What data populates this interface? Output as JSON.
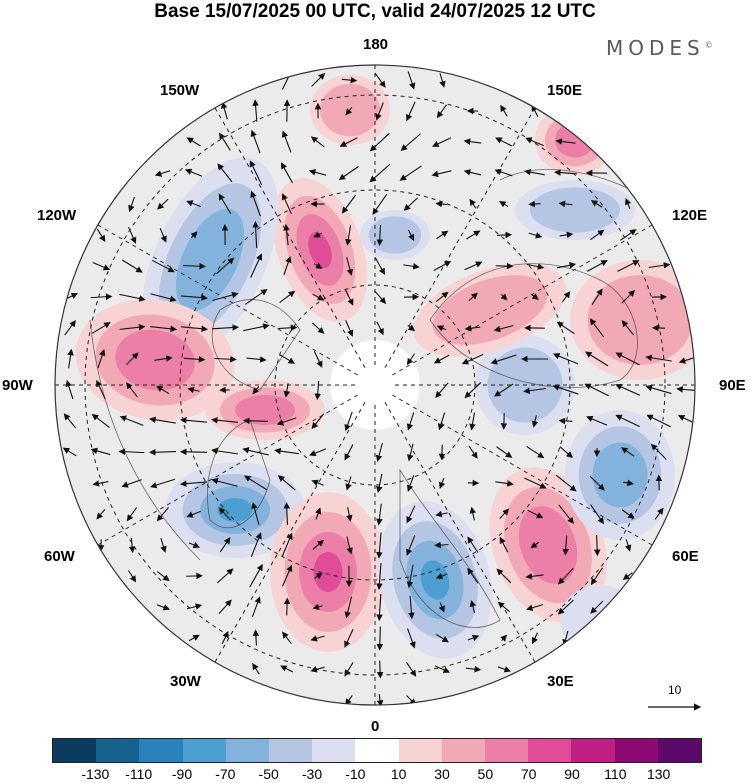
{
  "header": {
    "title": "Base 15/07/2025 00 UTC, valid 24/07/2025 12 UTC",
    "brand": "MODES",
    "brand_mark": "©"
  },
  "map": {
    "projection": "north polar stereographic",
    "longitude_labels": {
      "top": "180",
      "top_left": "150W",
      "top_right": "150E",
      "upper_left": "120W",
      "upper_right": "120E",
      "left": "90W",
      "right": "90E",
      "lower_left": "60W",
      "lower_right": "60E",
      "bottom_left": "30W",
      "bottom_right": "30E",
      "bottom": "0"
    },
    "vector_reference": "10"
  },
  "legend": {
    "colors": [
      "#0b3b5e",
      "#17618f",
      "#2a82bc",
      "#4d9fd2",
      "#83b3dc",
      "#b4c6e3",
      "#dcdff0",
      "#ffffff",
      "#f7d3d4",
      "#f2a9b6",
      "#ec7fa8",
      "#e04c98",
      "#c01f84",
      "#8c0a72",
      "#5b0a6c"
    ],
    "tick_labels": [
      "-130",
      "-110",
      "-90",
      "-70",
      "-50",
      "-30",
      "-10",
      "10",
      "30",
      "50",
      "70",
      "90",
      "110",
      "130"
    ]
  }
}
